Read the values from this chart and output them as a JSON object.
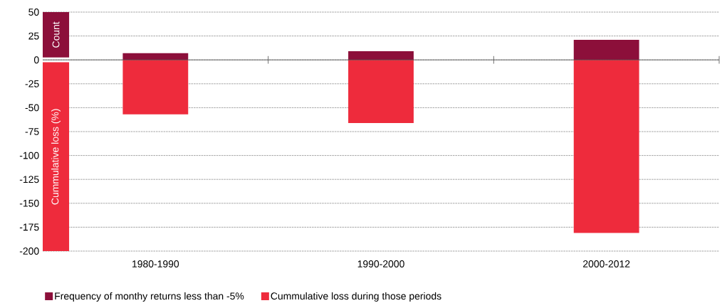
{
  "chart_data": {
    "type": "bar",
    "categories": [
      "1980-1990",
      "1990-2000",
      "2000-2012"
    ],
    "series": [
      {
        "name": "Frequency of monthy returns less than -5%",
        "color": "#8c0f3a",
        "values": [
          7,
          9,
          21
        ]
      },
      {
        "name": "Cummulative loss during those periods",
        "color": "#ee2b3c",
        "values": [
          -57,
          -66,
          -181
        ]
      }
    ],
    "ylabel": "Cummulative loss (%)",
    "annotations": [
      "Count"
    ],
    "ylim": [
      -200,
      50
    ],
    "yticks": [
      -200,
      -175,
      -150,
      -125,
      -100,
      -75,
      -50,
      -25,
      0,
      25,
      50
    ],
    "grid": "y",
    "legend": "bottom",
    "stacked": true
  }
}
